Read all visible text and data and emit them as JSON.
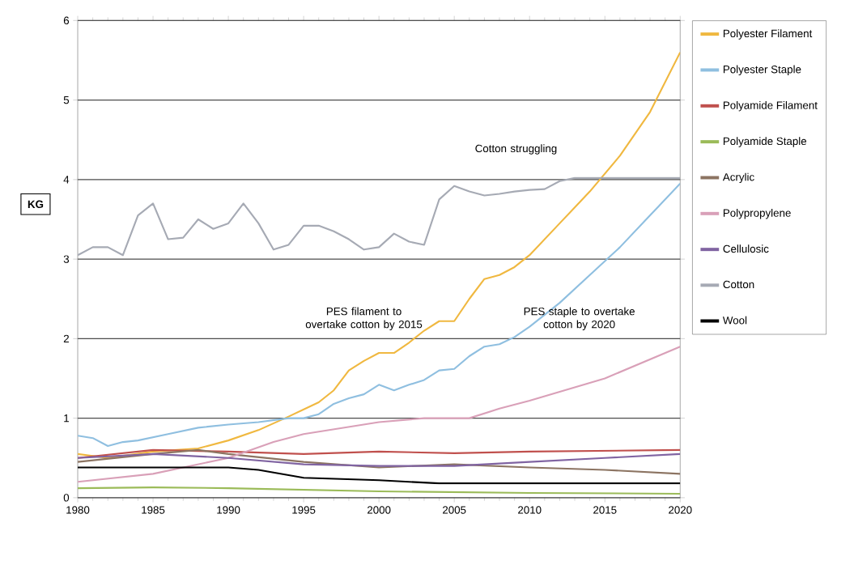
{
  "chart_data": {
    "type": "line",
    "ylabel": "KG",
    "xlim": [
      1980,
      2020
    ],
    "ylim": [
      0,
      6
    ],
    "xticks": [
      1980,
      1985,
      1990,
      1995,
      2000,
      2005,
      2010,
      2015,
      2020
    ],
    "yticks": [
      0,
      1,
      2,
      3,
      4,
      5,
      6
    ],
    "grid": "y",
    "legend": "right",
    "marker": "none",
    "line_style": "solid",
    "annotations": [
      "Cotton struggling",
      "PES filament to overtake cotton by 2015",
      "PES staple to overtake cotton by 2020"
    ],
    "series": [
      {
        "name": "Polyester Filament",
        "color": "#f0b840",
        "x": [
          1980,
          1982,
          1985,
          1988,
          1990,
          1992,
          1994,
          1996,
          1997,
          1998,
          1999,
          2000,
          2001,
          2002,
          2003,
          2004,
          2005,
          2006,
          2007,
          2008,
          2009,
          2010,
          2012,
          2014,
          2016,
          2018,
          2020
        ],
        "values": [
          0.55,
          0.5,
          0.58,
          0.62,
          0.72,
          0.85,
          1.02,
          1.2,
          1.35,
          1.6,
          1.72,
          1.82,
          1.82,
          1.95,
          2.1,
          2.22,
          2.22,
          2.5,
          2.75,
          2.8,
          2.9,
          3.05,
          3.45,
          3.85,
          4.3,
          4.85,
          5.6
        ]
      },
      {
        "name": "Polyester Staple",
        "color": "#8fbfe0",
        "x": [
          1980,
          1981,
          1982,
          1983,
          1984,
          1986,
          1988,
          1990,
          1992,
          1994,
          1995,
          1996,
          1997,
          1998,
          1999,
          2000,
          2001,
          2002,
          2003,
          2004,
          2005,
          2006,
          2007,
          2008,
          2009,
          2010,
          2012,
          2014,
          2016,
          2018,
          2020
        ],
        "values": [
          0.78,
          0.75,
          0.65,
          0.7,
          0.72,
          0.8,
          0.88,
          0.92,
          0.95,
          1.0,
          1.0,
          1.05,
          1.18,
          1.25,
          1.3,
          1.42,
          1.35,
          1.42,
          1.48,
          1.6,
          1.62,
          1.78,
          1.9,
          1.93,
          2.02,
          2.15,
          2.45,
          2.8,
          3.15,
          3.55,
          3.95
        ]
      },
      {
        "name": "Polyamide Filament",
        "color": "#c0504d",
        "x": [
          1980,
          1985,
          1990,
          1995,
          2000,
          2005,
          2010,
          2020
        ],
        "values": [
          0.5,
          0.6,
          0.58,
          0.55,
          0.58,
          0.56,
          0.58,
          0.6
        ]
      },
      {
        "name": "Polyamide Staple",
        "color": "#9bbb59",
        "x": [
          1980,
          1985,
          1990,
          2000,
          2010,
          2020
        ],
        "values": [
          0.12,
          0.13,
          0.12,
          0.08,
          0.06,
          0.05
        ]
      },
      {
        "name": "Acrylic",
        "color": "#8c7462",
        "x": [
          1980,
          1985,
          1988,
          1990,
          1995,
          2000,
          2005,
          2010,
          2015,
          2020
        ],
        "values": [
          0.45,
          0.55,
          0.6,
          0.55,
          0.45,
          0.38,
          0.42,
          0.38,
          0.35,
          0.3
        ]
      },
      {
        "name": "Polypropylene",
        "color": "#d9a0b8",
        "x": [
          1980,
          1985,
          1990,
          1993,
          1995,
          2000,
          2003,
          2006,
          2008,
          2010,
          2015,
          2020
        ],
        "values": [
          0.2,
          0.3,
          0.5,
          0.7,
          0.8,
          0.95,
          1.0,
          1.0,
          1.12,
          1.22,
          1.5,
          1.9
        ]
      },
      {
        "name": "Cellulosic",
        "color": "#8064a2",
        "x": [
          1980,
          1985,
          1990,
          1995,
          2000,
          2005,
          2010,
          2015,
          2020
        ],
        "values": [
          0.5,
          0.55,
          0.5,
          0.42,
          0.4,
          0.4,
          0.45,
          0.5,
          0.55
        ]
      },
      {
        "name": "Cotton",
        "color": "#a6aab4",
        "x": [
          1980,
          1981,
          1982,
          1983,
          1984,
          1985,
          1986,
          1987,
          1988,
          1989,
          1990,
          1991,
          1992,
          1993,
          1994,
          1995,
          1996,
          1997,
          1998,
          1999,
          2000,
          2001,
          2002,
          2003,
          2004,
          2005,
          2006,
          2007,
          2008,
          2009,
          2010,
          2011,
          2012,
          2013,
          2020
        ],
        "values": [
          3.05,
          3.15,
          3.15,
          3.05,
          3.55,
          3.7,
          3.25,
          3.27,
          3.5,
          3.38,
          3.45,
          3.7,
          3.45,
          3.12,
          3.18,
          3.42,
          3.42,
          3.35,
          3.25,
          3.12,
          3.15,
          3.32,
          3.22,
          3.18,
          3.75,
          3.92,
          3.85,
          3.8,
          3.82,
          3.85,
          3.87,
          3.88,
          3.98,
          4.02,
          4.02
        ]
      },
      {
        "name": "Wool",
        "color": "#000000",
        "x": [
          1980,
          1985,
          1990,
          1992,
          1995,
          2000,
          2004,
          2010,
          2020
        ],
        "values": [
          0.38,
          0.38,
          0.38,
          0.35,
          0.25,
          0.22,
          0.18,
          0.18,
          0.18
        ]
      }
    ]
  }
}
